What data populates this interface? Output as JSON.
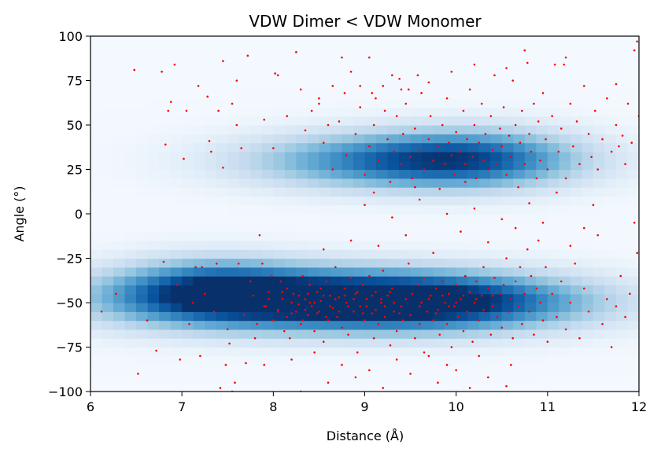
{
  "chart_data": {
    "type": "heatmap",
    "title": "VDW Dimer < VDW Monomer",
    "xlabel": "Distance (Å)",
    "ylabel": "Angle (°)",
    "xlim": [
      6,
      12
    ],
    "ylim": [
      -100,
      100
    ],
    "xticks": [
      "6",
      "7",
      "8",
      "9",
      "10",
      "11",
      "12"
    ],
    "yticks": [
      "−100",
      "−75",
      "−50",
      "−25",
      "0",
      "25",
      "50",
      "75",
      "100"
    ],
    "grid": false,
    "colormap": "Blues",
    "overlay": {
      "type": "scatter",
      "color": "#ff0000",
      "marker_size": 2
    },
    "density_clusters": [
      {
        "center_distance": 8.4,
        "center_angle": -48,
        "spread_distance": 1.2,
        "spread_angle": 12,
        "weight": 1.0
      },
      {
        "center_distance": 9.9,
        "center_angle": -50,
        "spread_distance": 0.9,
        "spread_angle": 11,
        "weight": 0.65
      },
      {
        "center_distance": 7.3,
        "center_angle": -42,
        "spread_distance": 0.55,
        "spread_angle": 12,
        "weight": 0.55
      },
      {
        "center_distance": 9.4,
        "center_angle": 30,
        "spread_distance": 0.9,
        "spread_angle": 11,
        "weight": 0.75
      },
      {
        "center_distance": 10.3,
        "center_angle": 32,
        "spread_distance": 0.6,
        "spread_angle": 12,
        "weight": 0.4
      }
    ],
    "scatter_points": [
      [
        6.12,
        -55
      ],
      [
        6.28,
        -45
      ],
      [
        6.48,
        81
      ],
      [
        6.52,
        -90
      ],
      [
        6.62,
        -60
      ],
      [
        6.72,
        -77
      ],
      [
        6.78,
        80
      ],
      [
        6.8,
        -27
      ],
      [
        6.82,
        39
      ],
      [
        6.85,
        58
      ],
      [
        6.88,
        63
      ],
      [
        6.92,
        84
      ],
      [
        6.95,
        -40
      ],
      [
        6.98,
        -82
      ],
      [
        7.02,
        31
      ],
      [
        7.05,
        58
      ],
      [
        7.08,
        -62
      ],
      [
        7.12,
        -50
      ],
      [
        7.15,
        -30
      ],
      [
        7.18,
        72
      ],
      [
        7.2,
        -80
      ],
      [
        7.22,
        -30
      ],
      [
        7.25,
        -45
      ],
      [
        7.28,
        66
      ],
      [
        7.3,
        41
      ],
      [
        7.32,
        35
      ],
      [
        7.35,
        -55
      ],
      [
        7.38,
        -28
      ],
      [
        7.4,
        58
      ],
      [
        7.42,
        -98
      ],
      [
        7.45,
        26
      ],
      [
        7.48,
        -85
      ],
      [
        7.5,
        -65
      ],
      [
        7.52,
        -73
      ],
      [
        7.55,
        62
      ],
      [
        7.58,
        -95
      ],
      [
        7.6,
        50
      ],
      [
        7.62,
        -28
      ],
      [
        7.65,
        37
      ],
      [
        7.68,
        -57
      ],
      [
        7.7,
        -84
      ],
      [
        7.72,
        89
      ],
      [
        7.75,
        -38
      ],
      [
        7.78,
        -46
      ],
      [
        7.8,
        -70
      ],
      [
        7.82,
        -62
      ],
      [
        7.85,
        -12
      ],
      [
        7.88,
        -28
      ],
      [
        7.9,
        53
      ],
      [
        7.92,
        -52
      ],
      [
        7.95,
        -44
      ],
      [
        7.98,
        -35
      ],
      [
        8.0,
        -60
      ],
      [
        8.02,
        79
      ],
      [
        8.05,
        -55
      ],
      [
        8.08,
        -38
      ],
      [
        8.1,
        -48
      ],
      [
        8.12,
        -66
      ],
      [
        8.15,
        -42
      ],
      [
        8.18,
        -70
      ],
      [
        8.2,
        -56
      ],
      [
        8.22,
        -45
      ],
      [
        8.25,
        91
      ],
      [
        8.28,
        -51
      ],
      [
        8.3,
        -62
      ],
      [
        8.32,
        -35
      ],
      [
        8.35,
        -48
      ],
      [
        8.38,
        -57
      ],
      [
        8.4,
        -40
      ],
      [
        8.42,
        -52
      ],
      [
        8.45,
        -66
      ],
      [
        8.48,
        -44
      ],
      [
        8.5,
        -55
      ],
      [
        8.52,
        -49
      ],
      [
        8.55,
        -72
      ],
      [
        8.58,
        -38
      ],
      [
        8.6,
        -60
      ],
      [
        8.62,
        -46
      ],
      [
        8.65,
        -53
      ],
      [
        8.68,
        -30
      ],
      [
        8.7,
        -58
      ],
      [
        8.72,
        -47
      ],
      [
        8.75,
        -64
      ],
      [
        8.78,
        -42
      ],
      [
        8.8,
        -50
      ],
      [
        8.82,
        -68
      ],
      [
        8.85,
        -36
      ],
      [
        8.88,
        -55
      ],
      [
        8.9,
        -45
      ],
      [
        8.92,
        -78
      ],
      [
        8.95,
        -52
      ],
      [
        8.98,
        -40
      ],
      [
        9.0,
        -60
      ],
      [
        9.02,
        -48
      ],
      [
        9.05,
        -35
      ],
      [
        9.08,
        -56
      ],
      [
        9.1,
        -70
      ],
      [
        9.12,
        -44
      ],
      [
        9.15,
        -62
      ],
      [
        9.18,
        -50
      ],
      [
        9.2,
        -32
      ],
      [
        9.22,
        -58
      ],
      [
        9.25,
        -46
      ],
      [
        9.28,
        -74
      ],
      [
        9.3,
        -42
      ],
      [
        9.32,
        -55
      ],
      [
        9.35,
        -66
      ],
      [
        9.38,
        -38
      ],
      [
        9.4,
        -52
      ],
      [
        9.42,
        -60
      ],
      [
        9.45,
        -48
      ],
      [
        9.48,
        -28
      ],
      [
        9.5,
        -57
      ],
      [
        9.52,
        -45
      ],
      [
        9.55,
        -70
      ],
      [
        9.58,
        -40
      ],
      [
        9.6,
        -62
      ],
      [
        9.62,
        -50
      ],
      [
        9.65,
        -36
      ],
      [
        9.68,
        -55
      ],
      [
        9.7,
        -80
      ],
      [
        9.72,
        -46
      ],
      [
        9.75,
        -60
      ],
      [
        9.78,
        -42
      ],
      [
        9.8,
        -54
      ],
      [
        9.82,
        -68
      ],
      [
        9.85,
        -38
      ],
      [
        9.88,
        -50
      ],
      [
        9.9,
        -62
      ],
      [
        9.92,
        -45
      ],
      [
        9.95,
        -75
      ],
      [
        9.98,
        -52
      ],
      [
        10.0,
        -40
      ],
      [
        10.02,
        -58
      ],
      [
        10.05,
        -48
      ],
      [
        10.08,
        -66
      ],
      [
        10.1,
        -35
      ],
      [
        10.12,
        -55
      ],
      [
        10.15,
        -44
      ],
      [
        10.18,
        -72
      ],
      [
        10.2,
        -50
      ],
      [
        10.22,
        -38
      ],
      [
        10.25,
        -60
      ],
      [
        10.28,
        -46
      ],
      [
        10.3,
        -30
      ],
      [
        10.32,
        -56
      ],
      [
        10.35,
        -42
      ],
      [
        10.38,
        -68
      ],
      [
        10.4,
        -52
      ],
      [
        10.42,
        -36
      ],
      [
        10.45,
        -58
      ],
      [
        10.48,
        -45
      ],
      [
        10.5,
        -64
      ],
      [
        10.52,
        -40
      ],
      [
        10.55,
        -25
      ],
      [
        10.58,
        -55
      ],
      [
        10.6,
        -48
      ],
      [
        10.62,
        -70
      ],
      [
        10.65,
        -38
      ],
      [
        10.68,
        -52
      ],
      [
        10.7,
        -30
      ],
      [
        10.72,
        -62
      ],
      [
        10.75,
        -45
      ],
      [
        10.78,
        -20
      ],
      [
        10.8,
        -55
      ],
      [
        10.82,
        -35
      ],
      [
        10.85,
        -68
      ],
      [
        10.88,
        -42
      ],
      [
        10.9,
        -15
      ],
      [
        10.92,
        -50
      ],
      [
        10.95,
        -60
      ],
      [
        10.98,
        -30
      ],
      [
        11.0,
        -72
      ],
      [
        11.05,
        -45
      ],
      [
        11.1,
        -58
      ],
      [
        11.15,
        -38
      ],
      [
        11.2,
        -65
      ],
      [
        11.25,
        -50
      ],
      [
        11.3,
        -28
      ],
      [
        11.35,
        -70
      ],
      [
        11.4,
        -42
      ],
      [
        11.45,
        -55
      ],
      [
        11.5,
        5
      ],
      [
        11.55,
        -12
      ],
      [
        11.6,
        -62
      ],
      [
        11.65,
        -48
      ],
      [
        11.7,
        -75
      ],
      [
        11.75,
        -52
      ],
      [
        11.8,
        -35
      ],
      [
        11.85,
        -58
      ],
      [
        11.9,
        -45
      ],
      [
        11.95,
        -5
      ],
      [
        11.98,
        -22
      ],
      [
        8.3,
        -100
      ],
      [
        8.6,
        -95
      ],
      [
        8.9,
        -92
      ],
      [
        9.2,
        -98
      ],
      [
        9.5,
        -90
      ],
      [
        9.8,
        -95
      ],
      [
        10.0,
        -88
      ],
      [
        10.15,
        -98
      ],
      [
        10.35,
        -92
      ],
      [
        10.55,
        -97
      ],
      [
        7.55,
        -100
      ],
      [
        7.9,
        -85
      ],
      [
        8.2,
        -82
      ],
      [
        8.45,
        -78
      ],
      [
        8.75,
        -85
      ],
      [
        9.05,
        -88
      ],
      [
        9.35,
        -82
      ],
      [
        9.65,
        -78
      ],
      [
        9.9,
        -85
      ],
      [
        10.25,
        -80
      ],
      [
        10.6,
        -85
      ],
      [
        8.55,
        -20
      ],
      [
        8.85,
        -15
      ],
      [
        9.15,
        -18
      ],
      [
        9.45,
        -12
      ],
      [
        9.75,
        -22
      ],
      [
        10.05,
        -10
      ],
      [
        10.35,
        -16
      ],
      [
        10.65,
        -8
      ],
      [
        10.95,
        -5
      ],
      [
        11.25,
        -18
      ],
      [
        9.0,
        5
      ],
      [
        9.3,
        -2
      ],
      [
        9.6,
        8
      ],
      [
        9.9,
        0
      ],
      [
        10.2,
        3
      ],
      [
        10.5,
        -3
      ],
      [
        10.8,
        6
      ],
      [
        11.1,
        12
      ],
      [
        11.4,
        -8
      ],
      [
        9.1,
        12
      ],
      [
        9.55,
        15
      ],
      [
        10.1,
        18
      ],
      [
        8.0,
        37
      ],
      [
        8.15,
        55
      ],
      [
        8.35,
        47
      ],
      [
        8.5,
        65
      ],
      [
        8.55,
        40
      ],
      [
        8.65,
        25
      ],
      [
        8.72,
        52
      ],
      [
        8.8,
        33
      ],
      [
        8.9,
        45
      ],
      [
        8.95,
        60
      ],
      [
        9.0,
        22
      ],
      [
        9.05,
        38
      ],
      [
        9.1,
        50
      ],
      [
        9.15,
        30
      ],
      [
        9.2,
        72
      ],
      [
        9.25,
        42
      ],
      [
        9.28,
        18
      ],
      [
        9.32,
        35
      ],
      [
        9.35,
        55
      ],
      [
        9.4,
        28
      ],
      [
        9.42,
        45
      ],
      [
        9.45,
        62
      ],
      [
        9.5,
        32
      ],
      [
        9.52,
        20
      ],
      [
        9.55,
        48
      ],
      [
        9.6,
        36
      ],
      [
        9.62,
        68
      ],
      [
        9.65,
        25
      ],
      [
        9.7,
        42
      ],
      [
        9.72,
        55
      ],
      [
        9.75,
        30
      ],
      [
        9.8,
        38
      ],
      [
        9.82,
        14
      ],
      [
        9.85,
        50
      ],
      [
        9.88,
        28
      ],
      [
        9.9,
        65
      ],
      [
        9.92,
        40
      ],
      [
        9.95,
        33
      ],
      [
        9.98,
        22
      ],
      [
        10.0,
        46
      ],
      [
        10.05,
        35
      ],
      [
        10.08,
        58
      ],
      [
        10.1,
        28
      ],
      [
        10.12,
        42
      ],
      [
        10.15,
        70
      ],
      [
        10.18,
        32
      ],
      [
        10.2,
        50
      ],
      [
        10.22,
        20
      ],
      [
        10.25,
        40
      ],
      [
        10.28,
        62
      ],
      [
        10.3,
        30
      ],
      [
        10.32,
        45
      ],
      [
        10.35,
        25
      ],
      [
        10.38,
        55
      ],
      [
        10.4,
        36
      ],
      [
        10.42,
        78
      ],
      [
        10.45,
        28
      ],
      [
        10.48,
        48
      ],
      [
        10.5,
        38
      ],
      [
        10.52,
        60
      ],
      [
        10.55,
        22
      ],
      [
        10.58,
        44
      ],
      [
        10.6,
        32
      ],
      [
        10.62,
        75
      ],
      [
        10.65,
        50
      ],
      [
        10.68,
        15
      ],
      [
        10.7,
        40
      ],
      [
        10.72,
        58
      ],
      [
        10.75,
        28
      ],
      [
        10.78,
        85
      ],
      [
        10.8,
        45
      ],
      [
        10.82,
        35
      ],
      [
        10.85,
        62
      ],
      [
        10.88,
        20
      ],
      [
        10.9,
        52
      ],
      [
        10.92,
        30
      ],
      [
        10.95,
        68
      ],
      [
        10.98,
        42
      ],
      [
        11.0,
        25
      ],
      [
        11.05,
        55
      ],
      [
        11.08,
        84
      ],
      [
        11.12,
        35
      ],
      [
        11.15,
        48
      ],
      [
        11.18,
        84
      ],
      [
        11.2,
        20
      ],
      [
        11.25,
        62
      ],
      [
        11.28,
        38
      ],
      [
        11.32,
        52
      ],
      [
        11.35,
        28
      ],
      [
        11.4,
        72
      ],
      [
        11.45,
        45
      ],
      [
        11.48,
        32
      ],
      [
        11.52,
        58
      ],
      [
        11.55,
        25
      ],
      [
        11.6,
        42
      ],
      [
        11.65,
        65
      ],
      [
        11.7,
        35
      ],
      [
        11.75,
        50
      ],
      [
        11.78,
        38
      ],
      [
        11.82,
        44
      ],
      [
        11.85,
        28
      ],
      [
        11.88,
        62
      ],
      [
        11.92,
        40
      ],
      [
        11.95,
        92
      ],
      [
        11.98,
        97
      ],
      [
        12.0,
        55
      ],
      [
        11.75,
        73
      ],
      [
        11.2,
        88
      ],
      [
        10.75,
        92
      ],
      [
        10.55,
        82
      ],
      [
        7.45,
        86
      ],
      [
        7.6,
        75
      ],
      [
        8.05,
        78
      ],
      [
        8.75,
        88
      ],
      [
        8.85,
        80
      ],
      [
        9.05,
        88
      ],
      [
        9.3,
        78
      ],
      [
        9.4,
        70
      ],
      [
        9.7,
        74
      ],
      [
        9.95,
        80
      ],
      [
        10.2,
        84
      ],
      [
        8.3,
        70
      ],
      [
        8.5,
        62
      ],
      [
        8.65,
        72
      ],
      [
        8.78,
        68
      ],
      [
        8.42,
        58
      ],
      [
        8.6,
        50
      ],
      [
        8.95,
        72
      ],
      [
        9.08,
        68
      ],
      [
        9.12,
        65
      ],
      [
        9.22,
        58
      ],
      [
        9.38,
        76
      ],
      [
        9.48,
        70
      ],
      [
        9.58,
        78
      ],
      [
        8.25,
        -55
      ],
      [
        8.32,
        -60
      ],
      [
        8.38,
        -45
      ],
      [
        8.45,
        -50
      ],
      [
        8.52,
        -42
      ],
      [
        8.58,
        -58
      ],
      [
        8.62,
        -52
      ],
      [
        8.68,
        -48
      ],
      [
        8.72,
        -55
      ],
      [
        8.78,
        -46
      ],
      [
        8.82,
        -52
      ],
      [
        8.88,
        -48
      ],
      [
        8.92,
        -44
      ],
      [
        8.98,
        -56
      ],
      [
        9.02,
        -52
      ],
      [
        9.08,
        -46
      ],
      [
        9.12,
        -54
      ],
      [
        9.18,
        -48
      ],
      [
        9.22,
        -52
      ],
      [
        9.28,
        -44
      ],
      [
        9.32,
        -50
      ],
      [
        9.38,
        -56
      ],
      [
        7.9,
        -52
      ],
      [
        7.95,
        -48
      ],
      [
        8.05,
        -54
      ],
      [
        8.1,
        -44
      ],
      [
        8.15,
        -58
      ],
      [
        8.2,
        -50
      ],
      [
        8.28,
        -46
      ],
      [
        8.35,
        -54
      ],
      [
        8.4,
        -50
      ],
      [
        8.48,
        -56
      ],
      [
        8.55,
        -46
      ],
      [
        9.6,
        -52
      ],
      [
        9.7,
        -48
      ],
      [
        9.78,
        -56
      ],
      [
        9.85,
        -46
      ],
      [
        9.92,
        -52
      ],
      [
        10.0,
        -50
      ],
      [
        10.08,
        -46
      ],
      [
        10.15,
        -56
      ],
      [
        10.22,
        -48
      ],
      [
        10.3,
        -54
      ],
      [
        10.4,
        -46
      ]
    ]
  }
}
